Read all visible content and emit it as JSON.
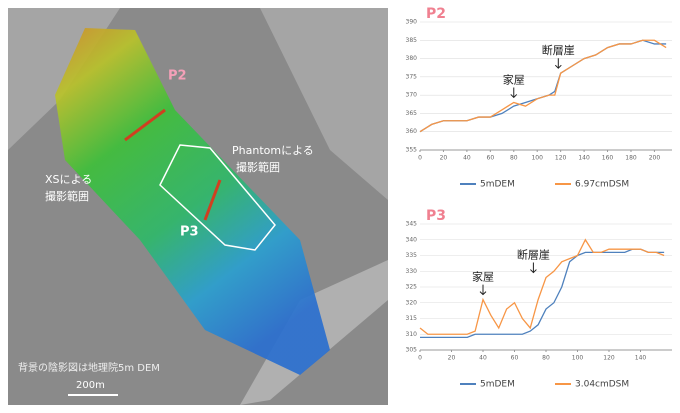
{
  "map": {
    "p2": "P2",
    "xs": [
      "XSによる",
      "撮影範囲"
    ],
    "phantom": [
      "Phantomによる",
      "撮影範囲"
    ],
    "p3": "P3",
    "note": "背景の陰影図は地理院5m DEM",
    "scale": "200m"
  },
  "chart_data": [
    {
      "type": "line",
      "title": "P2",
      "x": [
        0,
        10,
        20,
        30,
        40,
        50,
        60,
        70,
        80,
        90,
        100,
        110,
        115,
        120,
        130,
        140,
        150,
        160,
        170,
        180,
        190,
        200,
        210
      ],
      "series": [
        {
          "name": "5mDEM",
          "color": "#4f81bd",
          "values": [
            360,
            362,
            363,
            363,
            363,
            364,
            364,
            365,
            367,
            368,
            369,
            370,
            371,
            376,
            378,
            380,
            381,
            383,
            384,
            384,
            385,
            384,
            384
          ]
        },
        {
          "name": "6.97cmDSM",
          "color": "#f79646",
          "values": [
            360,
            362,
            363,
            363,
            363,
            364,
            364,
            366,
            368,
            367,
            369,
            370,
            370,
            376,
            378,
            380,
            381,
            383,
            384,
            384,
            385,
            385,
            383
          ]
        }
      ],
      "xlim": [
        0,
        215
      ],
      "xticks": [
        0,
        20,
        40,
        60,
        80,
        100,
        120,
        140,
        160,
        180,
        200
      ],
      "ylim": [
        355,
        390
      ],
      "yticks": [
        355,
        360,
        365,
        370,
        375,
        380,
        385,
        390
      ],
      "grid": true,
      "annotations": [
        {
          "text": "家屋",
          "x": 80,
          "y": 368
        },
        {
          "text": "断層崖",
          "x": 118,
          "y": 376
        }
      ]
    },
    {
      "type": "line",
      "title": "P3",
      "x": [
        0,
        5,
        10,
        15,
        20,
        25,
        30,
        35,
        40,
        45,
        50,
        55,
        60,
        65,
        70,
        75,
        80,
        85,
        90,
        95,
        100,
        105,
        110,
        115,
        120,
        125,
        130,
        135,
        140,
        145,
        150,
        155
      ],
      "series": [
        {
          "name": "5mDEM",
          "color": "#4f81bd",
          "values": [
            309,
            309,
            309,
            309,
            309,
            309,
            309,
            310,
            310,
            310,
            310,
            310,
            310,
            310,
            311,
            313,
            318,
            320,
            325,
            333,
            335,
            336,
            336,
            336,
            336,
            336,
            336,
            337,
            337,
            336,
            336,
            336
          ]
        },
        {
          "name": "3.04cmDSM",
          "color": "#f79646",
          "values": [
            312,
            310,
            310,
            310,
            310,
            310,
            310,
            311,
            321,
            316,
            312,
            318,
            320,
            315,
            312,
            321,
            328,
            330,
            333,
            334,
            335,
            340,
            336,
            336,
            337,
            337,
            337,
            337,
            337,
            336,
            336,
            335
          ]
        }
      ],
      "xlim": [
        0,
        160
      ],
      "xticks": [
        0,
        20,
        40,
        60,
        80,
        100,
        120,
        140
      ],
      "ylim": [
        305,
        345
      ],
      "yticks": [
        305,
        310,
        315,
        320,
        325,
        330,
        335,
        340,
        345
      ],
      "grid": true,
      "annotations": [
        {
          "text": "家屋",
          "x": 40,
          "y": 321
        },
        {
          "text": "断層崖",
          "x": 72,
          "y": 328
        }
      ]
    }
  ]
}
